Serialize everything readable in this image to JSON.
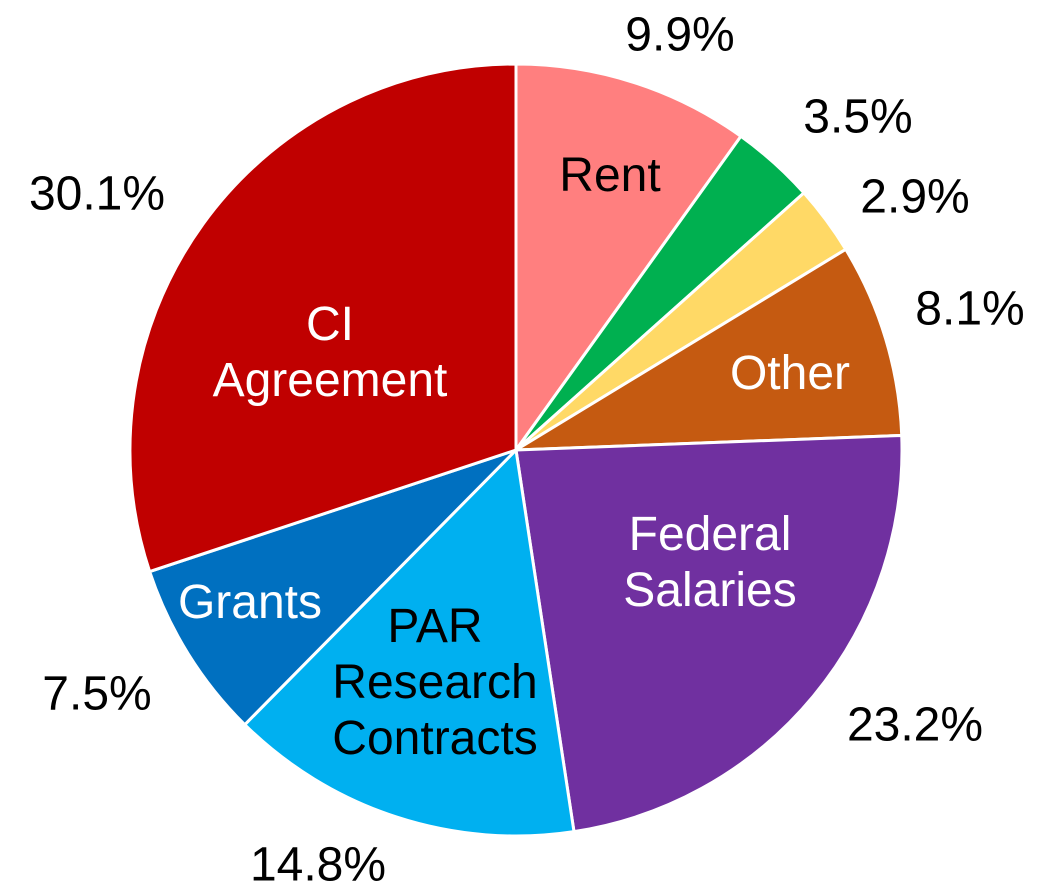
{
  "chart_data": {
    "type": "pie",
    "categories": [
      "Rent",
      null,
      null,
      "Other",
      "Federal Salaries",
      "PAR Research Contracts",
      "Grants",
      "CI Agreement"
    ],
    "values": [
      9.9,
      3.5,
      2.9,
      8.1,
      23.2,
      14.8,
      7.5,
      30.1
    ],
    "value_labels": [
      "9.9%",
      "3.5%",
      "2.9%",
      "8.1%",
      "23.2%",
      "14.8%",
      "7.5%",
      "30.1%"
    ],
    "colors": [
      "#ff7f7f",
      "#00b050",
      "#ffd966",
      "#c55a11",
      "#7030a0",
      "#00b0f0",
      "#0070c0",
      "#c00000"
    ]
  }
}
